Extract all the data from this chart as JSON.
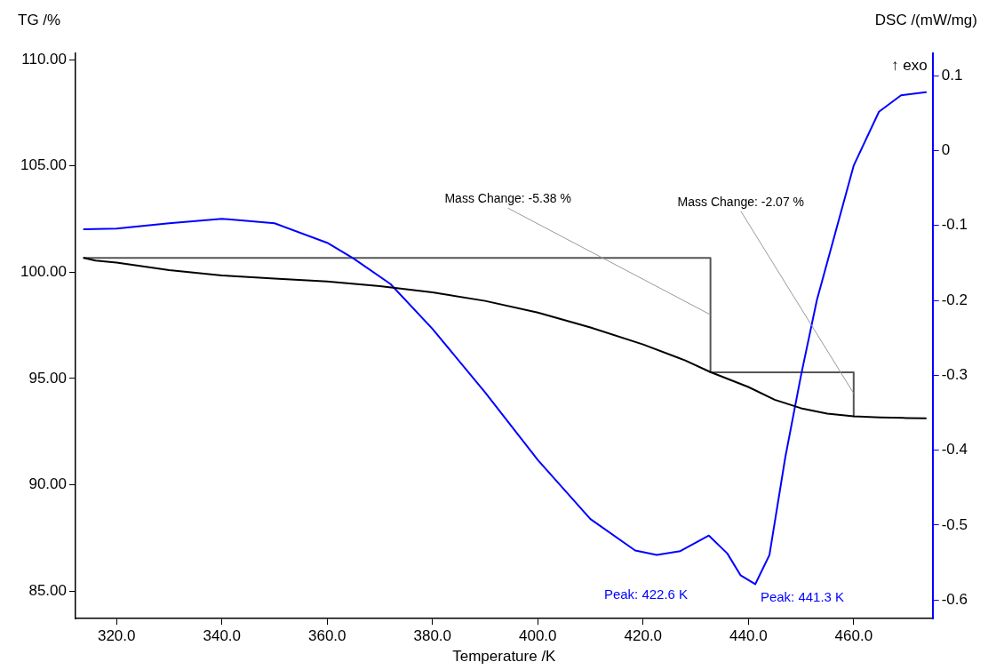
{
  "chart_data": {
    "type": "line",
    "xlabel": "Temperature /K",
    "ylabel": "TG /%",
    "y2label": "DSC /(mW/mg)",
    "xlim": [
      312.2,
      475
    ],
    "xticks": [
      {
        "value": 320,
        "label": "320.0"
      },
      {
        "value": 340,
        "label": "340.0"
      },
      {
        "value": 360,
        "label": "360.0"
      },
      {
        "value": 380,
        "label": "380.0"
      },
      {
        "value": 400,
        "label": "400.0"
      },
      {
        "value": 420,
        "label": "420.0"
      },
      {
        "value": 440,
        "label": "440.0"
      },
      {
        "value": 460,
        "label": "460.0"
      }
    ],
    "ylim": [
      83.7,
      110.3
    ],
    "yticks": [
      {
        "value": 85,
        "label": "85.00"
      },
      {
        "value": 90,
        "label": "90.00"
      },
      {
        "value": 95,
        "label": "95.00"
      },
      {
        "value": 100,
        "label": "100.00"
      },
      {
        "value": 105,
        "label": "105.00"
      },
      {
        "value": 110,
        "label": "110.00"
      }
    ],
    "y2lim": [
      -0.625,
      0.13
    ],
    "y2ticks": [
      -0.6,
      -0.5,
      -0.4,
      -0.3,
      -0.2,
      -0.1,
      0,
      0.1
    ],
    "grid": false,
    "legend": false,
    "marker": "none",
    "line_style": "solid",
    "series": [
      {
        "color": "#000000",
        "x": [
          313.8,
          316,
          320,
          330,
          340,
          350,
          360,
          370,
          380,
          390,
          400,
          410,
          420,
          428,
          432.8,
          440,
          445,
          450,
          455,
          460,
          465,
          470,
          473.7
        ],
        "values": [
          100.67,
          100.55,
          100.45,
          100.1,
          99.85,
          99.7,
          99.57,
          99.35,
          99.05,
          98.65,
          98.1,
          97.4,
          96.6,
          95.85,
          95.3,
          94.6,
          94.0,
          93.6,
          93.35,
          93.22,
          93.17,
          93.14,
          93.13
        ]
      },
      {
        "color": "#0000ff",
        "axis": "y2",
        "x": [
          313.8,
          320,
          330,
          340,
          350,
          360,
          365,
          372,
          380,
          390,
          400,
          410,
          418.5,
          422.6,
          427,
          432.5,
          436,
          438.5,
          441.3,
          444,
          447,
          450,
          453,
          456.5,
          460,
          464.8,
          469,
          473.7
        ],
        "values": [
          -0.105,
          -0.104,
          -0.097,
          -0.091,
          -0.097,
          -0.123,
          -0.144,
          -0.178,
          -0.238,
          -0.323,
          -0.413,
          -0.492,
          -0.534,
          -0.54,
          -0.535,
          -0.514,
          -0.538,
          -0.567,
          -0.579,
          -0.54,
          -0.41,
          -0.3,
          -0.2,
          -0.11,
          -0.02,
          0.052,
          0.074,
          0.078
        ]
      },
      {
        "color": "#555555",
        "x": [
          313.8,
          432.8,
          432.8
        ],
        "values": [
          100.67,
          100.67,
          95.29
        ]
      },
      {
        "color": "#555555",
        "x": [
          432.8,
          460,
          460
        ],
        "values": [
          95.29,
          95.29,
          93.22
        ]
      }
    ],
    "annotations": [
      {
        "text": "Mass Change: -5.38 %",
        "x": 432.8,
        "y": 98.0
      },
      {
        "text": "Mass Change: -2.07 %",
        "x": 460,
        "y": 94.3
      },
      "Peak: 422.6 K",
      "Peak: 441.3 K",
      "↑ exo"
    ]
  }
}
